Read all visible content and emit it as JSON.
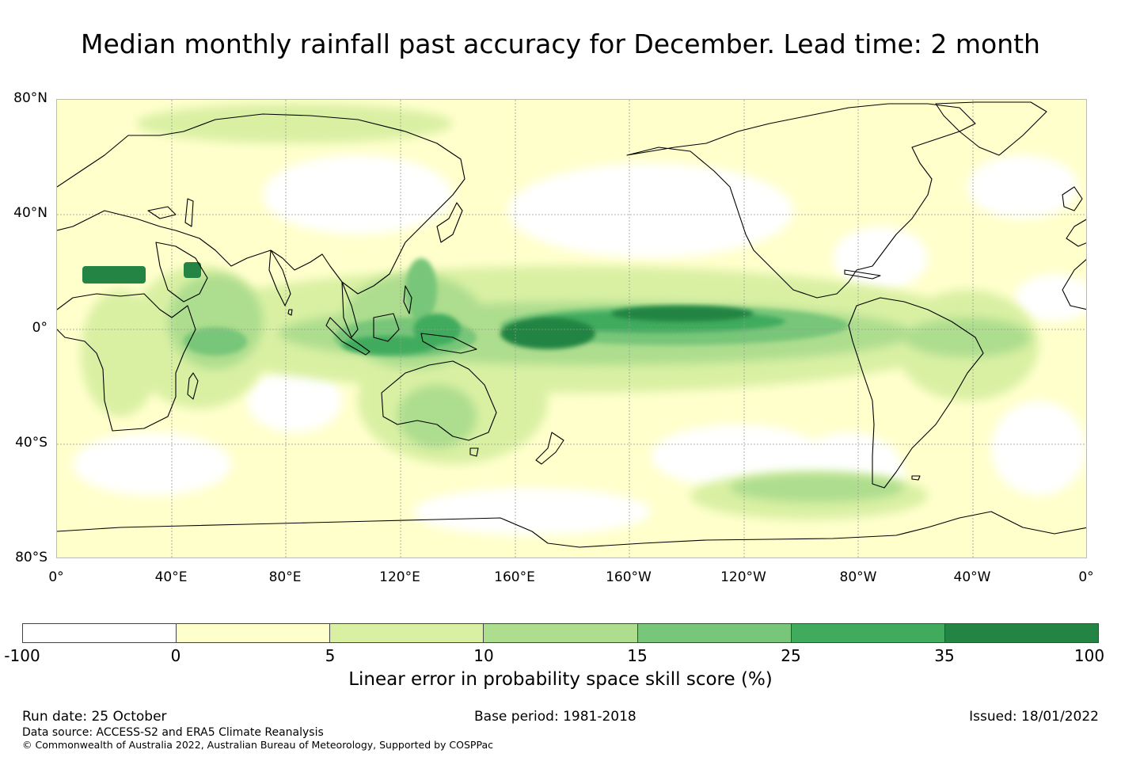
{
  "title": "Median monthly rainfall past accuracy for December. Lead time: 2 month",
  "map": {
    "lat_labels": [
      "80°N",
      "40°N",
      "0°",
      "40°S",
      "80°S"
    ],
    "lon_labels": [
      "0°",
      "40°E",
      "80°E",
      "120°E",
      "160°E",
      "160°W",
      "120°W",
      "80°W",
      "40°W",
      "0°"
    ],
    "ocean_color": "#ffffff",
    "land_outline_color": "#000000"
  },
  "colorbar": {
    "ticks": [
      "-100",
      "0",
      "5",
      "10",
      "15",
      "25",
      "35",
      "100"
    ],
    "colors": [
      "#ffffff",
      "#ffffcc",
      "#d9f0a3",
      "#addd8e",
      "#78c679",
      "#41ab5d",
      "#238443"
    ],
    "label": "Linear error in probability space skill score (%)"
  },
  "footer": {
    "run_date": "Run date: 25 October",
    "base_period": "Base period: 1981-2018",
    "issued": "Issued: 18/01/2022",
    "data_source": "Data source: ACCESS-S2 and ERA5 Climate Reanalysis",
    "copyright": "© Commonwealth of Australia 2022, Australian Bureau of Meteorology, Supported by COSPPac"
  }
}
